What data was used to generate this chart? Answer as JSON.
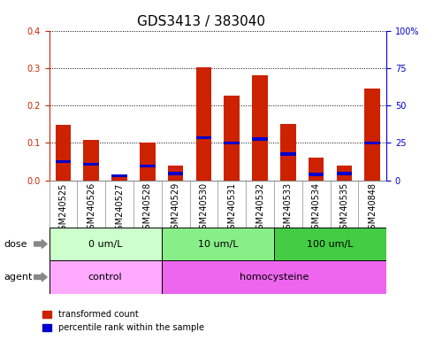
{
  "title": "GDS3413 / 383040",
  "samples": [
    "GSM240525",
    "GSM240526",
    "GSM240527",
    "GSM240528",
    "GSM240529",
    "GSM240530",
    "GSM240531",
    "GSM240532",
    "GSM240533",
    "GSM240534",
    "GSM240535",
    "GSM240848"
  ],
  "red_values": [
    0.148,
    0.107,
    0.013,
    0.1,
    0.04,
    0.302,
    0.225,
    0.28,
    0.15,
    0.06,
    0.04,
    0.245
  ],
  "blue_values": [
    0.05,
    0.043,
    0.012,
    0.038,
    0.018,
    0.113,
    0.1,
    0.11,
    0.07,
    0.015,
    0.018,
    0.1
  ],
  "dose_groups": [
    {
      "label": "0 um/L",
      "start": 0,
      "end": 4,
      "color": "#ccffcc"
    },
    {
      "label": "10 um/L",
      "start": 4,
      "end": 8,
      "color": "#88ee88"
    },
    {
      "label": "100 um/L",
      "start": 8,
      "end": 12,
      "color": "#44cc44"
    }
  ],
  "agent_groups": [
    {
      "label": "control",
      "start": 0,
      "end": 4,
      "color": "#ffaaff"
    },
    {
      "label": "homocysteine",
      "start": 4,
      "end": 12,
      "color": "#ee66ee"
    }
  ],
  "ylim_left": [
    0,
    0.4
  ],
  "ylim_right": [
    0,
    100
  ],
  "yticks_left": [
    0.0,
    0.1,
    0.2,
    0.3,
    0.4
  ],
  "yticks_right": [
    0,
    25,
    50,
    75,
    100
  ],
  "left_axis_color": "#cc2200",
  "right_axis_color": "#0000cc",
  "bar_color": "#cc2200",
  "marker_color": "#0000cc",
  "grid_color": "#000000",
  "xtick_bg_color": "#cccccc",
  "dose_label": "dose",
  "agent_label": "agent",
  "legend_red": "transformed count",
  "legend_blue": "percentile rank within the sample",
  "title_fontsize": 11,
  "tick_fontsize": 7,
  "label_fontsize": 8
}
